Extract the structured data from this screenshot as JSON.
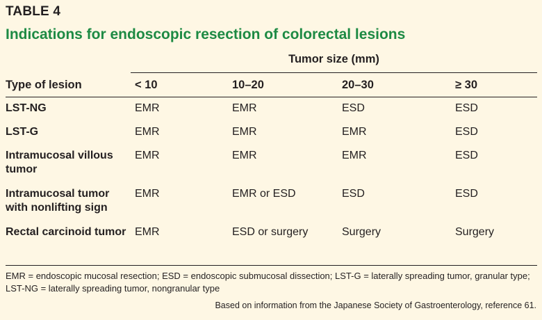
{
  "table_label": "TABLE 4",
  "title": "Indications for endoscopic resection of colorectal lesions",
  "spanner": "Tumor size (mm)",
  "columns": [
    "Type of lesion",
    "< 10",
    "10–20",
    "20–30",
    "≥ 30"
  ],
  "rows": [
    {
      "lesion": "LST-NG",
      "c1": "EMR",
      "c2": "EMR",
      "c3": "ESD",
      "c4": "ESD"
    },
    {
      "lesion": "LST-G",
      "c1": "EMR",
      "c2": "EMR",
      "c3": "EMR",
      "c4": "ESD"
    },
    {
      "lesion": "Intramucosal villous tumor",
      "c1": "EMR",
      "c2": "EMR",
      "c3": "EMR",
      "c4": "ESD"
    },
    {
      "lesion": "Intramucosal tumor with nonlifting sign",
      "c1": "EMR",
      "c2": "EMR or ESD",
      "c3": "ESD",
      "c4": "ESD"
    },
    {
      "lesion": "Rectal carcinoid tumor",
      "c1": "EMR",
      "c2": "ESD or surgery",
      "c3": "Surgery",
      "c4": "Surgery"
    }
  ],
  "footnote": "EMR = endoscopic mucosal resection; ESD = endoscopic submucosal dissection; LST-G = laterally spreading tumor, granular type; LST-NG = laterally spreading tumor, nongranular type",
  "source": "Based on information from the Japanese Society of Gastroenterology, reference 61.",
  "colors": {
    "background": "#fef7e4",
    "title": "#1d8a43",
    "text": "#231f20"
  }
}
